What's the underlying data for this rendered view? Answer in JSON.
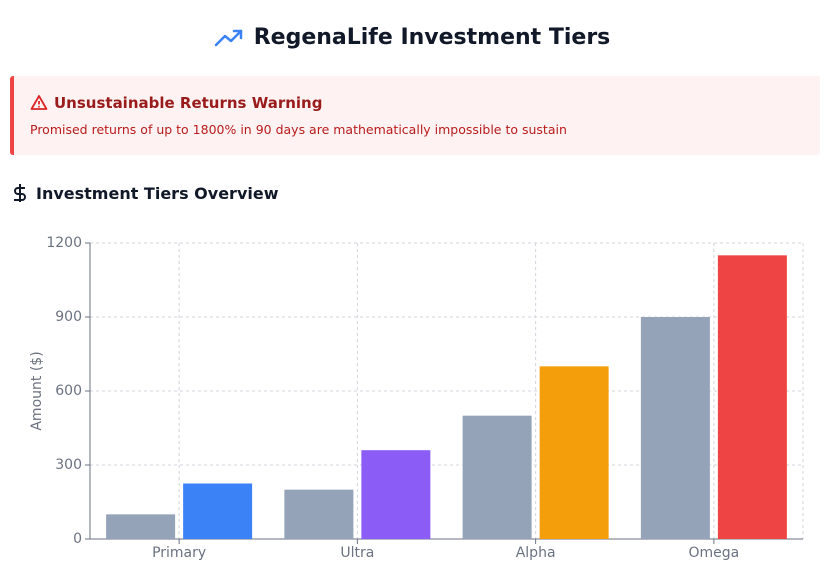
{
  "header": {
    "title": "RegenaLife Investment Tiers"
  },
  "warning": {
    "title": "Unsustainable Returns Warning",
    "text": "Promised returns of up to 1800% in 90 days are mathematically impossible to sustain"
  },
  "section": {
    "title": "Investment Tiers Overview"
  },
  "chart_data": {
    "type": "bar",
    "ylabel": "Amount ($)",
    "categories": [
      "Primary",
      "Ultra",
      "Alpha",
      "Omega"
    ],
    "series": [
      {
        "color": "#94a3b8",
        "values": [
          100,
          200,
          500,
          900
        ]
      },
      {
        "colors": [
          "#3b82f6",
          "#8b5cf6",
          "#f59e0b",
          "#ef4444"
        ],
        "values": [
          225,
          360,
          700,
          1150
        ]
      }
    ],
    "ylim": [
      0,
      1200
    ],
    "yticks": [
      0,
      300,
      600,
      900,
      1200
    ],
    "grid": true
  }
}
